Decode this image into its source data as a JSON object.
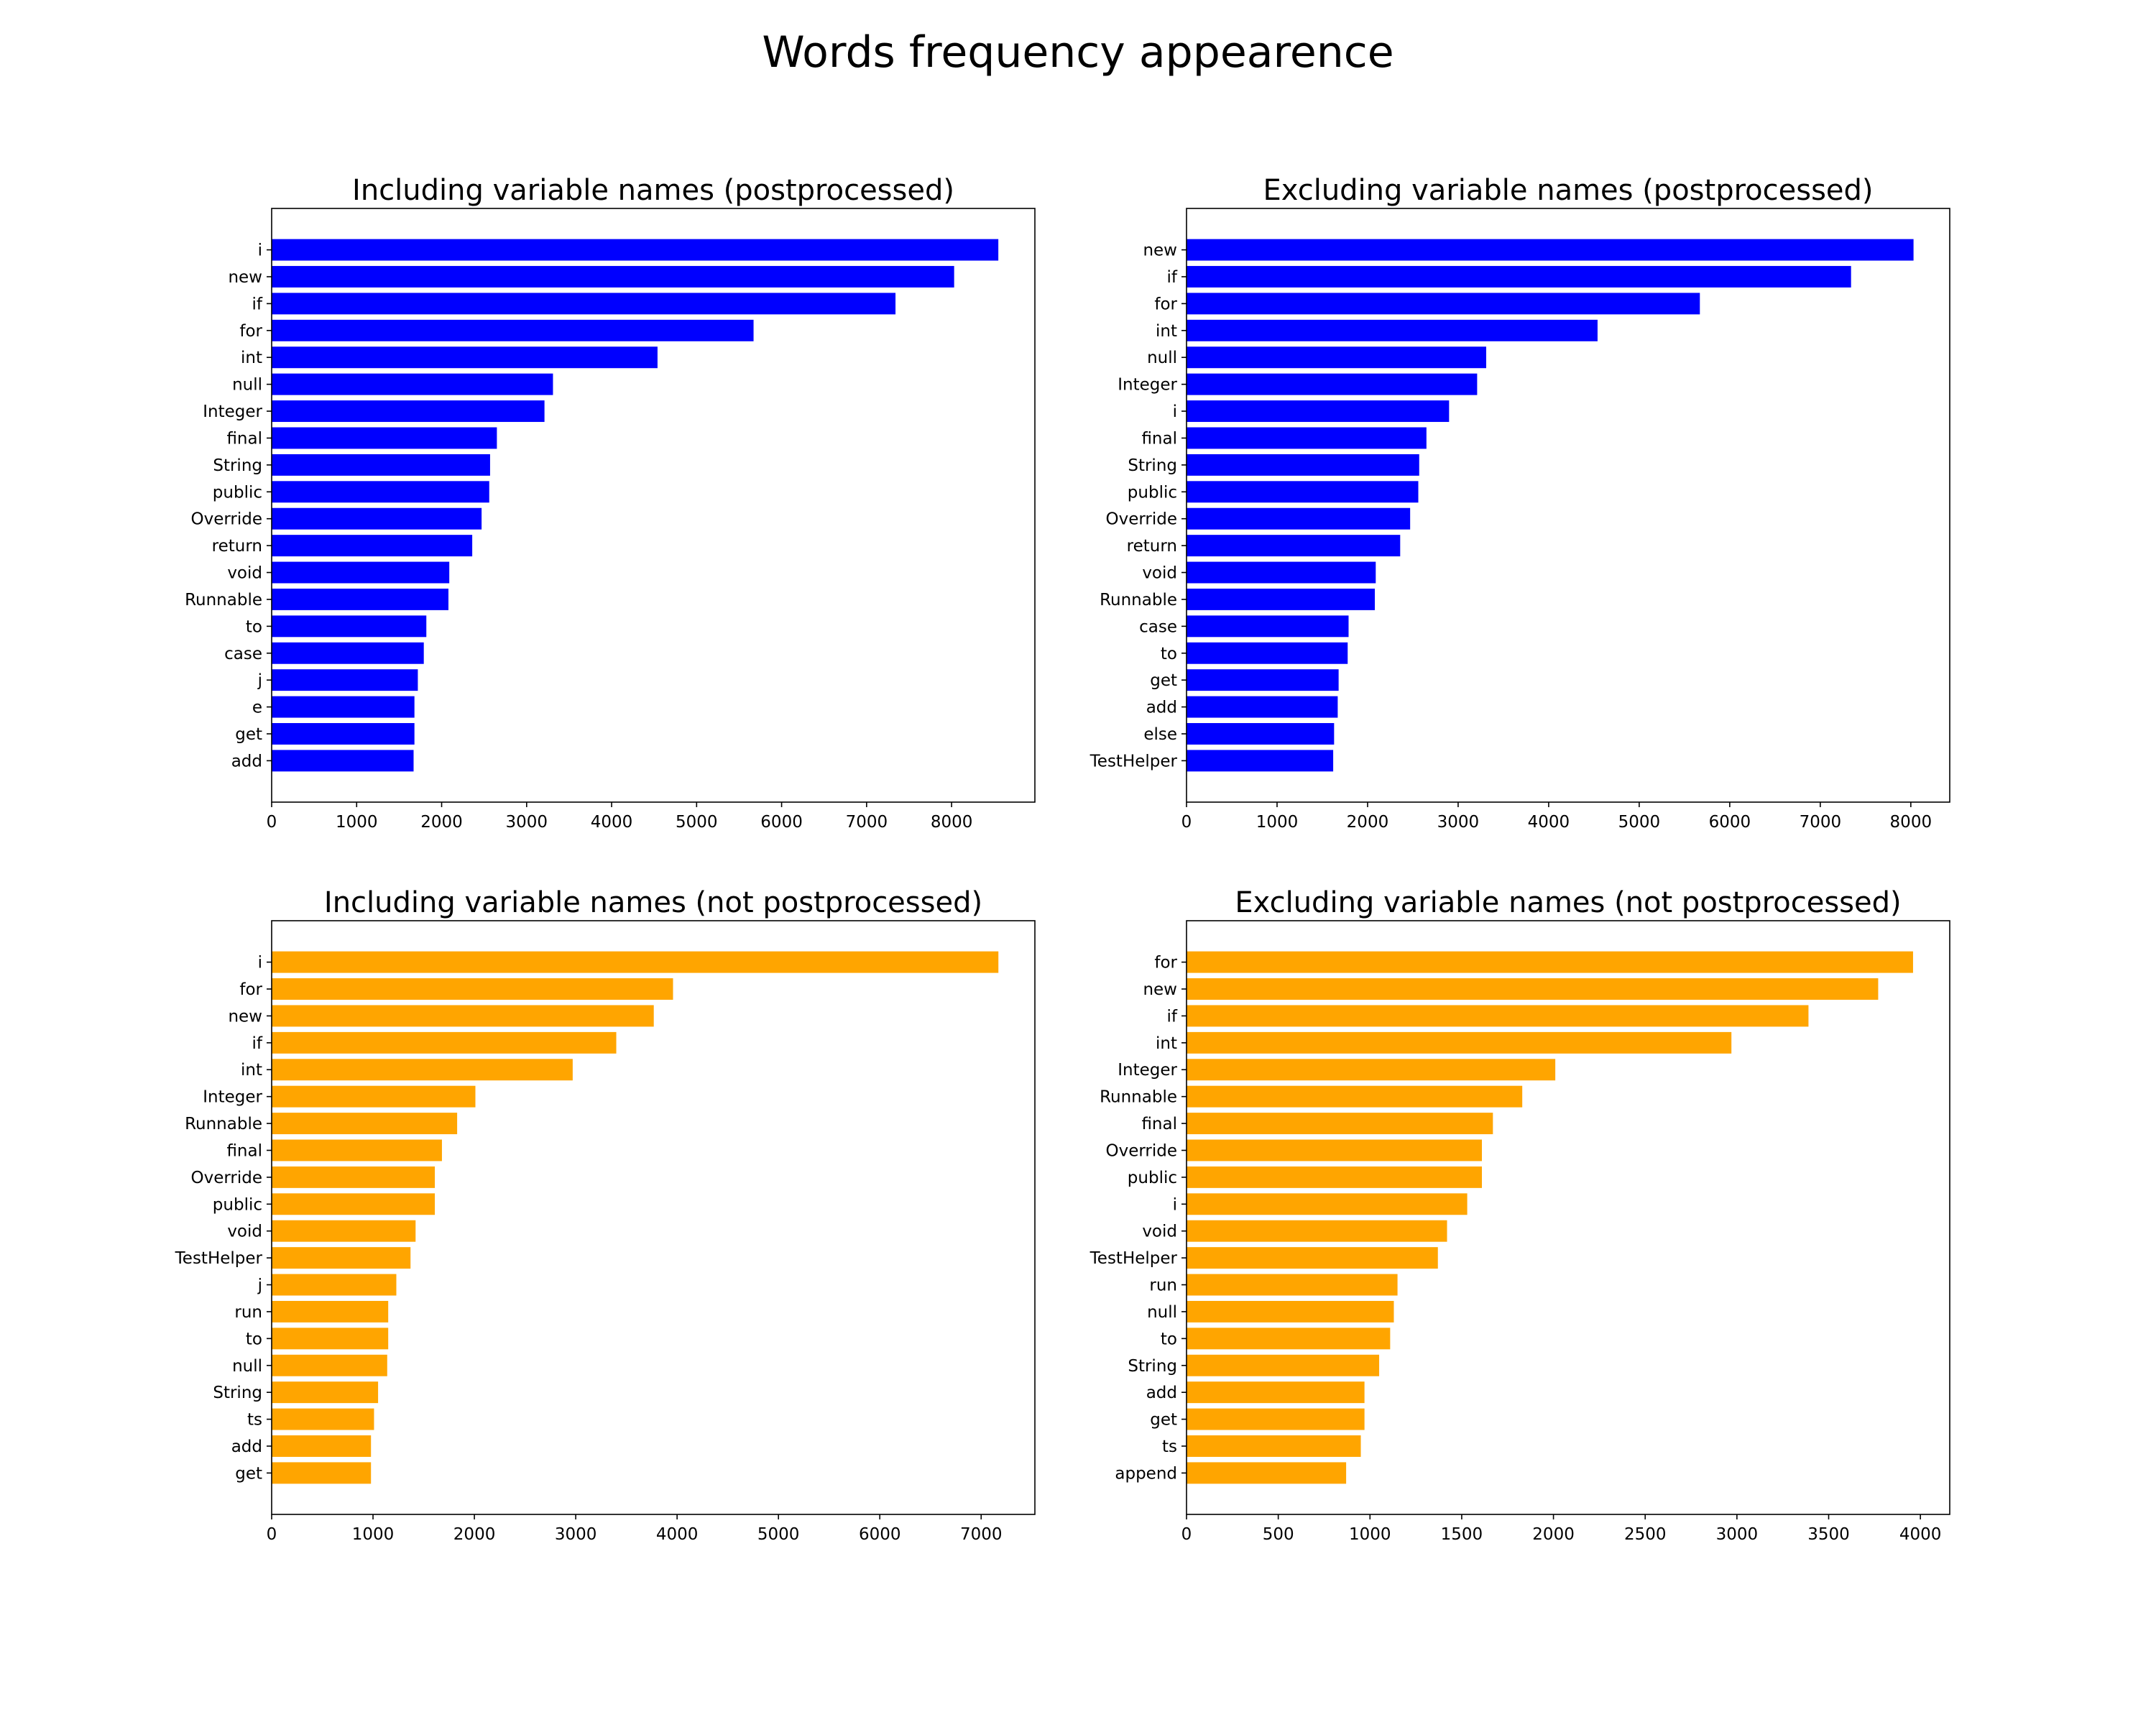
{
  "title": "Words frequency appearence",
  "chart_data": [
    {
      "type": "bar",
      "orientation": "horizontal",
      "title": "Including variable names (postprocessed)",
      "color": "#0000ff",
      "categories": [
        "i",
        "new",
        "if",
        "for",
        "int",
        "null",
        "Integer",
        "final",
        "String",
        "public",
        "Override",
        "return",
        "void",
        "Runnable",
        "to",
        "case",
        "j",
        "e",
        "get",
        "add"
      ],
      "values": [
        8550,
        8030,
        7340,
        5670,
        4540,
        3310,
        3210,
        2650,
        2570,
        2560,
        2470,
        2360,
        2090,
        2080,
        1820,
        1790,
        1720,
        1680,
        1680,
        1670
      ],
      "xlim": [
        0,
        8980
      ],
      "xticks": [
        0,
        1000,
        2000,
        3000,
        4000,
        5000,
        6000,
        7000,
        8000
      ],
      "xlabel": "",
      "ylabel": ""
    },
    {
      "type": "bar",
      "orientation": "horizontal",
      "title": "Excluding variable names (postprocessed)",
      "color": "#0000ff",
      "categories": [
        "new",
        "if",
        "for",
        "int",
        "null",
        "Integer",
        "i",
        "final",
        "String",
        "public",
        "Override",
        "return",
        "void",
        "Runnable",
        "case",
        "to",
        "get",
        "add",
        "else",
        "TestHelper"
      ],
      "values": [
        8030,
        7340,
        5670,
        4540,
        3310,
        3210,
        2900,
        2650,
        2570,
        2560,
        2470,
        2360,
        2090,
        2080,
        1790,
        1780,
        1680,
        1670,
        1630,
        1620
      ],
      "xlim": [
        0,
        8430
      ],
      "xticks": [
        0,
        1000,
        2000,
        3000,
        4000,
        5000,
        6000,
        7000,
        8000
      ],
      "xlabel": "",
      "ylabel": ""
    },
    {
      "type": "bar",
      "orientation": "horizontal",
      "title": "Including variable names (not postprocessed)",
      "color": "#ffa500",
      "categories": [
        "i",
        "for",
        "new",
        "if",
        "int",
        "Integer",
        "Runnable",
        "final",
        "Override",
        "public",
        "void",
        "TestHelper",
        "j",
        "run",
        "to",
        "null",
        "String",
        "ts",
        "add",
        "get"
      ],
      "values": [
        7170,
        3960,
        3770,
        3400,
        2970,
        2010,
        1830,
        1680,
        1610,
        1610,
        1420,
        1370,
        1230,
        1150,
        1150,
        1140,
        1050,
        1010,
        980,
        980
      ],
      "xlim": [
        0,
        7530
      ],
      "xticks": [
        0,
        1000,
        2000,
        3000,
        4000,
        5000,
        6000,
        7000
      ],
      "xlabel": "",
      "ylabel": ""
    },
    {
      "type": "bar",
      "orientation": "horizontal",
      "title": "Excluding variable names (not postprocessed)",
      "color": "#ffa500",
      "categories": [
        "for",
        "new",
        "if",
        "int",
        "Integer",
        "Runnable",
        "final",
        "Override",
        "public",
        "i",
        "void",
        "TestHelper",
        "run",
        "null",
        "to",
        "String",
        "add",
        "get",
        "ts",
        "append"
      ],
      "values": [
        3960,
        3770,
        3390,
        2970,
        2010,
        1830,
        1670,
        1610,
        1610,
        1530,
        1420,
        1370,
        1150,
        1130,
        1110,
        1050,
        970,
        970,
        950,
        870
      ],
      "xlim": [
        0,
        4160
      ],
      "xticks": [
        0,
        500,
        1000,
        1500,
        2000,
        2500,
        3000,
        3500,
        4000
      ],
      "xlabel": "",
      "ylabel": ""
    }
  ]
}
